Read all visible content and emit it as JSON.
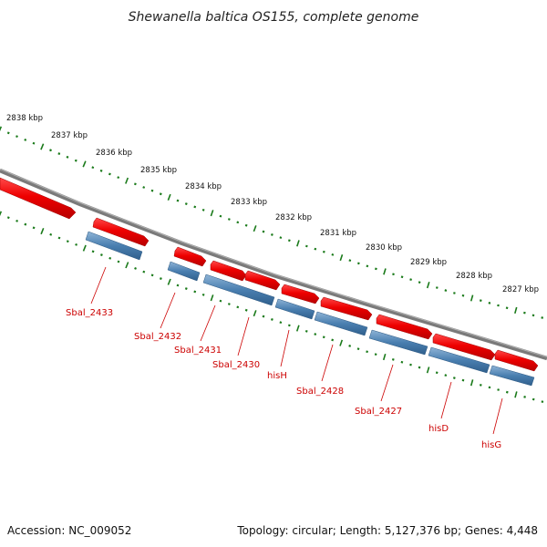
{
  "title": "Shewanella baltica OS155, complete genome",
  "footer": {
    "accession": "Accession: NC_009052",
    "summary": "Topology: circular; Length: 5,127,376 bp; Genes: 4,448"
  },
  "colors": {
    "backbone": "#808080",
    "cds_top": "#ee0000",
    "gene_bottom": "#4a7fb0",
    "ticks": "#1a7a1a",
    "labels": "#cc0000"
  },
  "scale": {
    "unit": "kbp",
    "ticks": [
      {
        "label": "2838 kbp"
      },
      {
        "label": "2837 kbp"
      },
      {
        "label": "2836 kbp"
      },
      {
        "label": "2835 kbp"
      },
      {
        "label": "2834 kbp"
      },
      {
        "label": "2833 kbp"
      },
      {
        "label": "2832 kbp"
      },
      {
        "label": "2831 kbp"
      },
      {
        "label": "2830 kbp"
      },
      {
        "label": "2829 kbp"
      },
      {
        "label": "2828 kbp"
      },
      {
        "label": "2827 kbp"
      }
    ]
  },
  "genes": [
    {
      "name": "Sbal_2433"
    },
    {
      "name": "Sbal_2432"
    },
    {
      "name": "Sbal_2431"
    },
    {
      "name": "Sbal_2430"
    },
    {
      "name": "hisH"
    },
    {
      "name": "Sbal_2428"
    },
    {
      "name": "Sbal_2427"
    },
    {
      "name": "hisD"
    },
    {
      "name": "hisG"
    }
  ]
}
